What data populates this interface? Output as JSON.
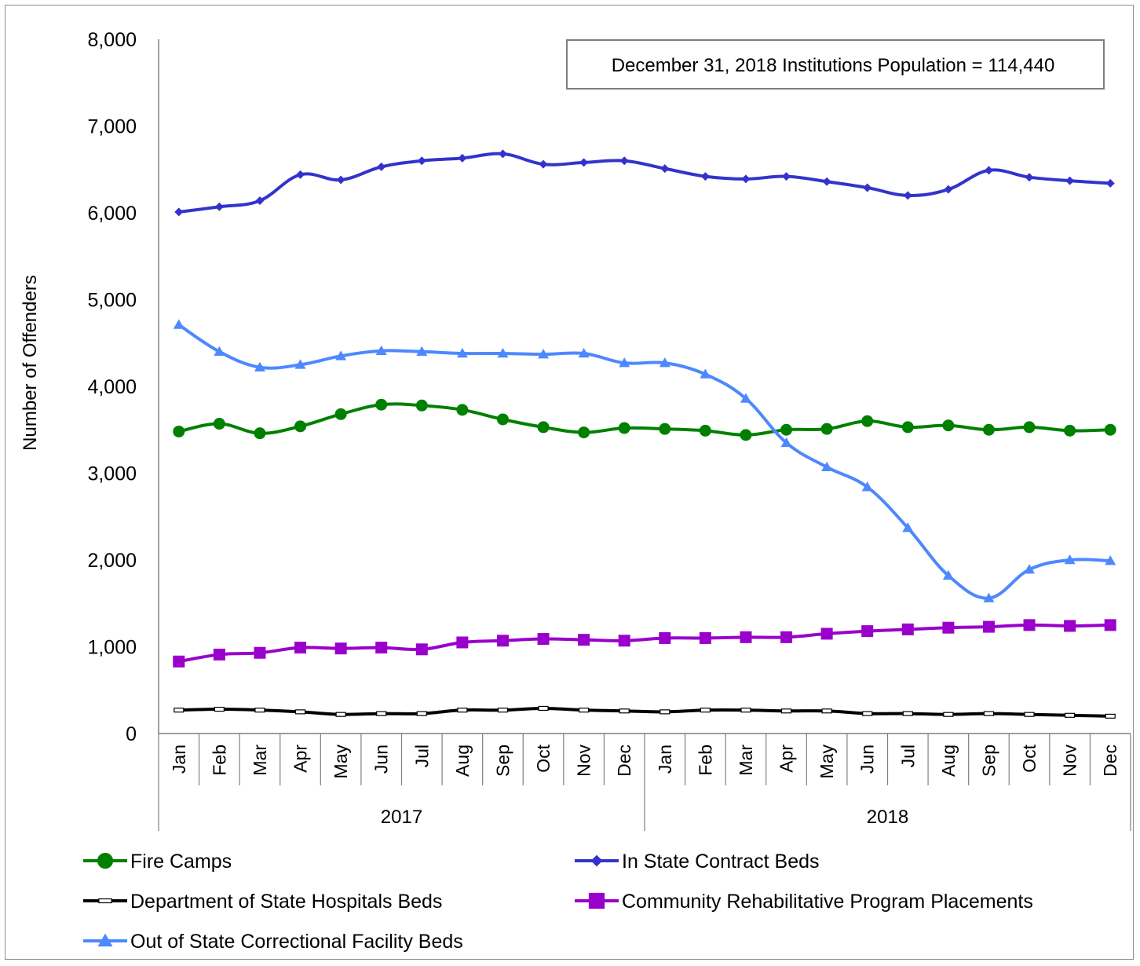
{
  "chart_data": {
    "type": "line",
    "ylabel": "Number of Offenders",
    "ylim": [
      0,
      8000
    ],
    "y_ticks": [
      "0",
      "1,000",
      "2,000",
      "3,000",
      "4,000",
      "5,000",
      "6,000",
      "7,000",
      "8,000"
    ],
    "y_tick_values": [
      0,
      1000,
      2000,
      3000,
      4000,
      5000,
      6000,
      7000,
      8000
    ],
    "annotation": "December 31, 2018 Institutions Population = 114,440",
    "categories": [
      "Jan",
      "Feb",
      "Mar",
      "Apr",
      "May",
      "Jun",
      "Jul",
      "Aug",
      "Sep",
      "Oct",
      "Nov",
      "Dec",
      "Jan",
      "Feb",
      "Mar",
      "Apr",
      "May",
      "Jun",
      "Jul",
      "Aug",
      "Sep",
      "Oct",
      "Nov",
      "Dec"
    ],
    "years": [
      {
        "label": "2017",
        "months": 12
      },
      {
        "label": "2018",
        "months": 12
      }
    ],
    "legend_placement": "bottom",
    "series": [
      {
        "name": "Fire Camps",
        "color": "#008000",
        "marker": "circle",
        "values": [
          3480,
          3570,
          3460,
          3540,
          3680,
          3790,
          3780,
          3730,
          3620,
          3530,
          3470,
          3520,
          3510,
          3490,
          3440,
          3500,
          3510,
          3600,
          3530,
          3550,
          3500,
          3530,
          3490,
          3500
        ]
      },
      {
        "name": "In State Contract Beds",
        "color": "#3333cc",
        "marker": "diamond",
        "values": [
          6010,
          6070,
          6140,
          6440,
          6380,
          6530,
          6600,
          6630,
          6680,
          6560,
          6580,
          6600,
          6510,
          6420,
          6390,
          6420,
          6360,
          6290,
          6200,
          6270,
          6490,
          6410,
          6370,
          6340
        ]
      },
      {
        "name": "Department of State Hospitals Beds",
        "color": "#000000",
        "marker": "dash",
        "values": [
          270,
          280,
          270,
          250,
          220,
          230,
          230,
          270,
          270,
          290,
          270,
          260,
          250,
          270,
          270,
          260,
          260,
          230,
          230,
          220,
          230,
          220,
          210,
          200
        ]
      },
      {
        "name": "Community Rehabilitative Program Placements",
        "color": "#9900cc",
        "marker": "square",
        "values": [
          830,
          910,
          930,
          990,
          980,
          990,
          970,
          1050,
          1070,
          1090,
          1080,
          1070,
          1100,
          1100,
          1110,
          1110,
          1150,
          1180,
          1200,
          1220,
          1230,
          1250,
          1240,
          1250
        ]
      },
      {
        "name": "Out of State Correctional Facility Beds",
        "color": "#4d88ff",
        "marker": "triangle",
        "values": [
          4710,
          4400,
          4220,
          4250,
          4350,
          4410,
          4400,
          4380,
          4380,
          4370,
          4380,
          4270,
          4270,
          4140,
          3860,
          3350,
          3070,
          2840,
          2370,
          1820,
          1560,
          1890,
          2000,
          1990
        ]
      }
    ]
  }
}
